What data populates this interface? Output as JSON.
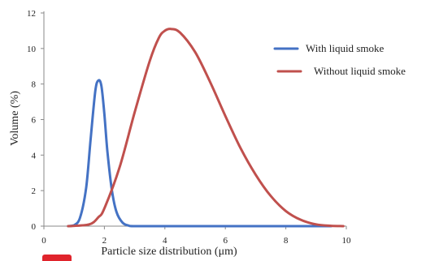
{
  "chart_data": {
    "type": "line",
    "title": "",
    "xlabel": "Particle size distribution (μm)",
    "ylabel": "Volume (%)",
    "xlim": [
      0,
      10
    ],
    "ylim": [
      0,
      12
    ],
    "xticks": [
      0,
      2,
      4,
      6,
      8,
      10
    ],
    "yticks": [
      0,
      2,
      4,
      6,
      8,
      10,
      12
    ],
    "grid": false,
    "legend_position": "top-right",
    "series": [
      {
        "name": "With liquid smoke",
        "color": "#4472c4",
        "x": [
          0.8,
          1.0,
          1.2,
          1.4,
          1.55,
          1.7,
          1.8,
          1.9,
          2.0,
          2.1,
          2.25,
          2.4,
          2.6,
          2.8,
          3.0,
          4.0,
          6.0,
          8.0,
          9.5
        ],
        "values": [
          0,
          0.05,
          0.5,
          2.2,
          5.0,
          7.6,
          8.2,
          7.9,
          6.3,
          4.2,
          2.0,
          0.8,
          0.2,
          0.03,
          0,
          0,
          0,
          0,
          0
        ]
      },
      {
        "name": "Without liquid smoke",
        "color": "#c0504d",
        "x": [
          0.8,
          1.5,
          1.8,
          2.0,
          2.5,
          3.0,
          3.5,
          3.8,
          4.0,
          4.2,
          4.5,
          5.0,
          5.5,
          6.0,
          6.5,
          7.0,
          7.5,
          8.0,
          8.5,
          9.0,
          9.5,
          9.9
        ],
        "values": [
          0,
          0.1,
          0.5,
          1.0,
          3.3,
          6.4,
          9.3,
          10.6,
          11.0,
          11.1,
          10.9,
          9.8,
          8.1,
          6.2,
          4.4,
          2.9,
          1.7,
          0.85,
          0.35,
          0.1,
          0.02,
          0
        ]
      }
    ]
  },
  "colors": {
    "axis": "#8a8a8a",
    "badge": "#e0242c"
  }
}
